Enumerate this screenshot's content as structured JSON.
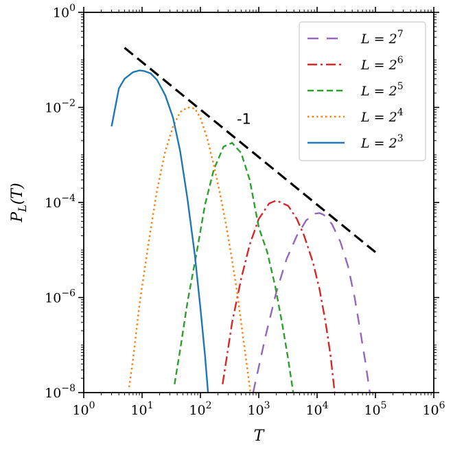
{
  "chart_data": {
    "type": "line",
    "xlabel": "T",
    "ylabel": "P_L(T)",
    "xscale": "log",
    "yscale": "log",
    "xlim": [
      1,
      1000000
    ],
    "ylim": [
      1e-08,
      1
    ],
    "xticks": [
      {
        "value": 1,
        "mantissa": "10",
        "exp": "0"
      },
      {
        "value": 10,
        "mantissa": "10",
        "exp": "1"
      },
      {
        "value": 100,
        "mantissa": "10",
        "exp": "2"
      },
      {
        "value": 1000,
        "mantissa": "10",
        "exp": "3"
      },
      {
        "value": 10000,
        "mantissa": "10",
        "exp": "4"
      },
      {
        "value": 100000,
        "mantissa": "10",
        "exp": "5"
      },
      {
        "value": 1000000,
        "mantissa": "10",
        "exp": "6"
      }
    ],
    "yticks": [
      {
        "value": 1,
        "mantissa": "10",
        "exp": "0"
      },
      {
        "value": 0.01,
        "mantissa": "10",
        "exp": "−2"
      },
      {
        "value": 0.0001,
        "mantissa": "10",
        "exp": "−4"
      },
      {
        "value": 1e-06,
        "mantissa": "10",
        "exp": "−6"
      },
      {
        "value": 1e-08,
        "mantissa": "10",
        "exp": "−8"
      }
    ],
    "grid": false,
    "legend_position": "top-right",
    "series": [
      {
        "name_base": "L = 2",
        "name_exp": "7",
        "color": "#9467bd",
        "dash": "16,12",
        "dash_noisy": true,
        "x": [
          80000,
          68000,
          55000,
          44000,
          34000,
          25000,
          18000,
          13000,
          11000,
          9000,
          6500,
          4500,
          3000,
          2000,
          1300,
          800
        ],
        "y": [
          1e-08,
          4e-08,
          2e-07,
          1e-06,
          4.5e-06,
          1.5e-05,
          3.5e-05,
          5.5e-05,
          6e-05,
          5.8e-05,
          4.2e-05,
          2e-05,
          6.5e-06,
          1.3e-06,
          1.5e-07,
          1e-08
        ]
      },
      {
        "name_base": "L = 2",
        "name_exp": "6",
        "color": "#d62728",
        "dash": "14,5,3,5",
        "dash_noisy": true,
        "x": [
          20000,
          17000,
          14000,
          11000,
          8500,
          6000,
          4500,
          3200,
          2000,
          1500,
          1000,
          700,
          500,
          350,
          240
        ],
        "y": [
          1e-08,
          6e-08,
          3e-07,
          1.5e-06,
          5.5e-06,
          2e-05,
          4.5e-05,
          8.5e-05,
          0.00011,
          9.5e-05,
          4.5e-05,
          1.3e-05,
          2.5e-06,
          3e-07,
          1.5e-08
        ]
      },
      {
        "name_base": "L = 2",
        "name_exp": "5",
        "color": "#2ca02c",
        "dash": "9,5",
        "dash_noisy": true,
        "x": [
          3900,
          3200,
          2500,
          1900,
          1400,
          1000,
          700,
          500,
          350,
          250,
          170,
          120,
          85,
          60,
          45,
          36
        ],
        "y": [
          1e-08,
          5e-08,
          3e-07,
          1.8e-06,
          9e-06,
          3e-05,
          0.0003,
          0.0011,
          0.0018,
          0.0015,
          0.0005,
          9e-05,
          8e-06,
          8e-07,
          8e-08,
          1.5e-08
        ]
      },
      {
        "name_base": "L = 2",
        "name_exp": "4",
        "color": "#ff7f0e",
        "dash": "2.5,4",
        "dash_noisy": true,
        "x": [
          720,
          620,
          520,
          430,
          350,
          280,
          220,
          170,
          130,
          100,
          80,
          60,
          45,
          34,
          25,
          18,
          13,
          9,
          7,
          6
        ],
        "y": [
          1e-08,
          4e-08,
          2e-07,
          1.2e-06,
          6e-06,
          3e-05,
          0.00014,
          0.0006,
          0.0023,
          0.006,
          0.0095,
          0.01,
          0.008,
          0.004,
          0.0012,
          0.00018,
          1.5e-05,
          7e-07,
          5e-08,
          1.3e-08
        ]
      },
      {
        "name_base": "L = 2",
        "name_exp": "3",
        "color": "#1f77b4",
        "dash": "",
        "dash_noisy": false,
        "x": [
          135,
          120,
          100,
          80,
          60,
          45,
          34,
          25,
          18,
          14,
          11,
          9,
          7,
          5,
          4,
          3
        ],
        "y": [
          1e-08,
          6e-08,
          6e-07,
          8e-06,
          0.00012,
          0.0012,
          0.006,
          0.018,
          0.038,
          0.052,
          0.058,
          0.06,
          0.055,
          0.04,
          0.025,
          0.004
        ]
      }
    ],
    "reference_line": {
      "label": "-1",
      "color": "#000000",
      "dash": "16,8",
      "x": [
        5,
        100000
      ],
      "y": [
        0.18,
        9e-06
      ],
      "label_at": {
        "x": 420,
        "y": 0.0045
      }
    }
  }
}
